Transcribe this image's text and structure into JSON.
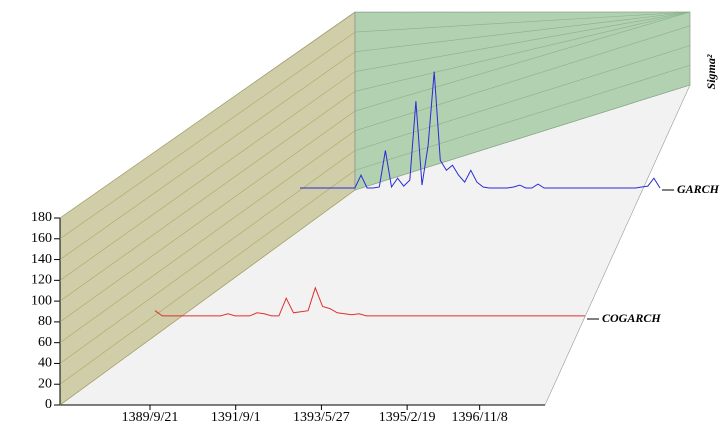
{
  "chart_data": {
    "type": "line3d",
    "ylabel": "Sigma²",
    "ylim": [
      0,
      180
    ],
    "yticks": [
      0,
      20,
      40,
      60,
      80,
      100,
      120,
      140,
      160,
      180
    ],
    "xlim": [
      0,
      59
    ],
    "xticks": [
      {
        "value": 0,
        "label": "1389/9/21"
      },
      {
        "value": 13,
        "label": "1391/9/1"
      },
      {
        "value": 26,
        "label": "1393/5/27"
      },
      {
        "value": 39,
        "label": "1395/2/19"
      },
      {
        "value": 50,
        "label": "1396/11/8"
      }
    ],
    "grid": true,
    "series": [
      {
        "name": "GARCH",
        "color": "#2b2bd6",
        "values": [
          2,
          2,
          2,
          2,
          2,
          2,
          2,
          2,
          2,
          2,
          15,
          2,
          2,
          3,
          40,
          3,
          12,
          4,
          10,
          90,
          5,
          45,
          120,
          30,
          20,
          25,
          15,
          8,
          20,
          8,
          3,
          2,
          2,
          2,
          2,
          3,
          5,
          2,
          2,
          6,
          2,
          2,
          2,
          2,
          2,
          2,
          2,
          2,
          2,
          2,
          2,
          2,
          2,
          2,
          2,
          2,
          3,
          4,
          12,
          2
        ]
      },
      {
        "name": "COGARCH",
        "color": "#e03030",
        "values": [
          8,
          3,
          3,
          3,
          3,
          3,
          3,
          3,
          3,
          3,
          5,
          3,
          3,
          3,
          6,
          5,
          3,
          3,
          20,
          6,
          7,
          8,
          30,
          12,
          10,
          6,
          5,
          4,
          5,
          3,
          3,
          3,
          3,
          3,
          3,
          3,
          3,
          3,
          3,
          3,
          3,
          3,
          3,
          3,
          3,
          3,
          3,
          3,
          3,
          3,
          3,
          3,
          3,
          3,
          3,
          3,
          3,
          3,
          3,
          3
        ]
      }
    ]
  }
}
